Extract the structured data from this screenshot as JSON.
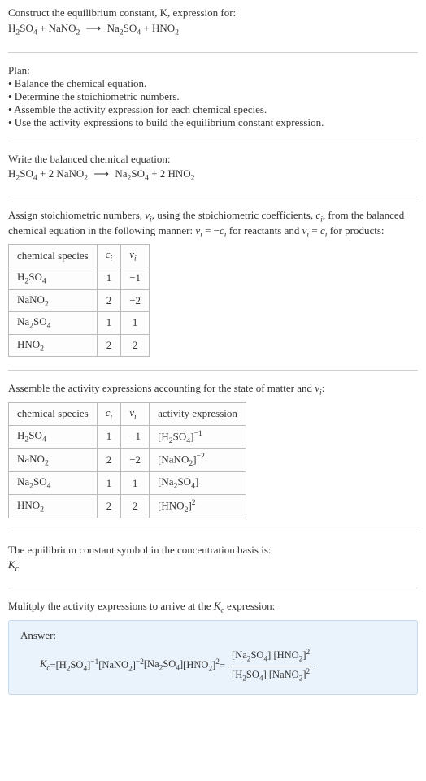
{
  "sec1": {
    "line1": "Construct the equilibrium constant, K, expression for:",
    "eq_h2so4": "H",
    "eq_h2so4_s1": "2",
    "eq_h2so4_b": "SO",
    "eq_h2so4_s2": "4",
    "plus1": " + ",
    "eq_nano2": "NaNO",
    "eq_nano2_s": "2",
    "arrow": "⟶",
    "eq_na2so4": "Na",
    "eq_na2so4_s1": "2",
    "eq_na2so4_b": "SO",
    "eq_na2so4_s2": "4",
    "plus2": " + ",
    "eq_hno2": "HNO",
    "eq_hno2_s": "2"
  },
  "sec2": {
    "title": "Plan:",
    "b1": "• Balance the chemical equation.",
    "b2": "• Determine the stoichiometric numbers.",
    "b3": "• Assemble the activity expression for each chemical species.",
    "b4": "• Use the activity expressions to build the equilibrium constant expression."
  },
  "sec3": {
    "title": "Write the balanced chemical equation:",
    "two_a": "2 ",
    "two_b": "2 "
  },
  "sec4": {
    "p1a": "Assign stoichiometric numbers, ",
    "nu_i": "ν",
    "sub_i": "i",
    "p1b": ", using the stoichiometric coefficients, ",
    "c_i": "c",
    "p1c": ", from the balanced chemical equation in the following manner: ",
    "p1d": " = −",
    "p1e": " for reactants and ",
    "p1f": " = ",
    "p1g": " for products:",
    "col1": "chemical species",
    "col2": "c",
    "col3": "ν",
    "r1c1a": "H",
    "r1c1s1": "2",
    "r1c1b": "SO",
    "r1c1s2": "4",
    "r1c2": "1",
    "r1c3": "−1",
    "r2c1a": "NaNO",
    "r2c1s": "2",
    "r2c2": "2",
    "r2c3": "−2",
    "r3c1a": "Na",
    "r3c1s1": "2",
    "r3c1b": "SO",
    "r3c1s2": "4",
    "r3c2": "1",
    "r3c3": "1",
    "r4c1a": "HNO",
    "r4c1s": "2",
    "r4c2": "2",
    "r4c3": "2"
  },
  "sec5": {
    "title_a": "Assemble the activity expressions accounting for the state of matter and ",
    "title_b": ":",
    "col1": "chemical species",
    "col2": "c",
    "col3": "ν",
    "col4": "activity expression",
    "r1c2": "1",
    "r1c3": "−1",
    "r1e_a": "[H",
    "r1e_s1": "2",
    "r1e_b": "SO",
    "r1e_s2": "4",
    "r1e_c": "]",
    "r1e_exp": "−1",
    "r2c2": "2",
    "r2c3": "−2",
    "r2e_a": "[NaNO",
    "r2e_s": "2",
    "r2e_b": "]",
    "r2e_exp": "−2",
    "r3c2": "1",
    "r3c3": "1",
    "r3e_a": "[Na",
    "r3e_s1": "2",
    "r3e_b": "SO",
    "r3e_s2": "4",
    "r3e_c": "]",
    "r4c2": "2",
    "r4c3": "2",
    "r4e_a": "[HNO",
    "r4e_s": "2",
    "r4e_b": "]",
    "r4e_exp": "2"
  },
  "sec6": {
    "title": "The equilibrium constant symbol in the concentration basis is:",
    "K": "K",
    "c": "c"
  },
  "sec7": {
    "title_a": "Mulitply the activity expressions to arrive at the ",
    "K": "K",
    "c": "c",
    "title_b": " expression:",
    "answer": "Answer:",
    "eq": " = ",
    "sp": " "
  }
}
